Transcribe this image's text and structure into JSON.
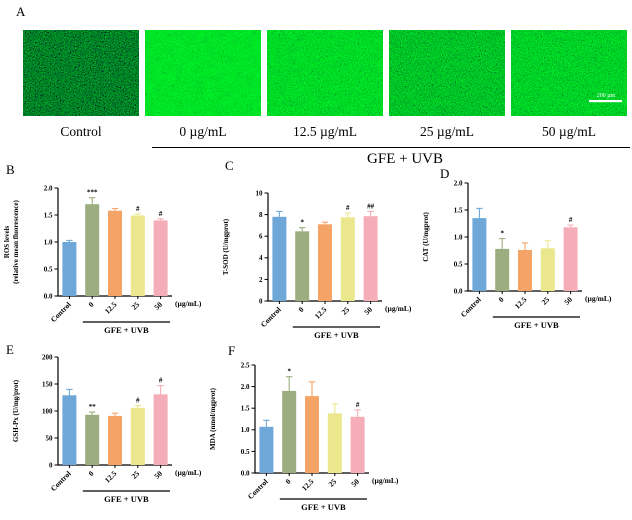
{
  "figure": {
    "panel_a": {
      "letter": "A",
      "images": [
        {
          "label": "Control"
        },
        {
          "label": "0 µg/mL"
        },
        {
          "label": "12.5 µg/mL"
        },
        {
          "label": "25 µg/mL"
        },
        {
          "label": "50 µg/mL",
          "scale_bar": "200 µm"
        }
      ],
      "group_label": "GFE + UVB"
    }
  },
  "colors": {
    "bar_palette": [
      "#6FA7D9",
      "#9CAE7F",
      "#F4A466",
      "#EBE78C",
      "#F5ADB7"
    ],
    "axis": "#000000",
    "image_background": "#03160a",
    "scale_bar": "#ffffff"
  },
  "chart_data": [
    {
      "panel": "B",
      "type": "bar",
      "ylabel_lines": [
        "ROS levels",
        "(relative mean fluorescence)"
      ],
      "categories": [
        "Control",
        "0",
        "12.5",
        "25",
        "50"
      ],
      "values": [
        1.0,
        1.7,
        1.58,
        1.49,
        1.4
      ],
      "errors": [
        0.03,
        0.12,
        0.04,
        0.03,
        0.03
      ],
      "sig": [
        "",
        "***",
        "",
        "#",
        "#"
      ],
      "yticks": [
        "0.0",
        "0.5",
        "1.0",
        "1.5",
        "2.0"
      ],
      "ymax": 2.0,
      "x_unit": "(µg/mL)",
      "group_label": "GFE + UVB"
    },
    {
      "panel": "C",
      "type": "bar",
      "ylabel_lines": [
        "T-SOD (U/mgprot)"
      ],
      "categories": [
        "Control",
        "0",
        "12.5",
        "25",
        "50"
      ],
      "values": [
        7.8,
        6.45,
        7.1,
        7.75,
        7.85
      ],
      "errors": [
        0.5,
        0.35,
        0.2,
        0.4,
        0.45
      ],
      "sig": [
        "",
        "*",
        "",
        "#",
        "##"
      ],
      "yticks": [
        "0",
        "2",
        "4",
        "6",
        "8",
        "10"
      ],
      "ymax": 10,
      "x_unit": "(µg/mL)",
      "group_label": "GFE + UVB"
    },
    {
      "panel": "D",
      "type": "bar",
      "ylabel_lines": [
        "CAT (U/mgprot)"
      ],
      "categories": [
        "Control",
        "0",
        "12.5",
        "25",
        "50"
      ],
      "values": [
        1.35,
        0.78,
        0.76,
        0.79,
        1.18
      ],
      "errors": [
        0.18,
        0.19,
        0.13,
        0.14,
        0.04
      ],
      "sig": [
        "",
        "*",
        "",
        "",
        "#"
      ],
      "yticks": [
        "0.0",
        "0.5",
        "1.0",
        "1.5",
        "2.0"
      ],
      "ymax": 2.0,
      "x_unit": "(µg/mL)",
      "group_label": "GFE + UVB"
    },
    {
      "panel": "E",
      "type": "bar",
      "ylabel_lines": [
        "GSH-Px (U/mg/prot)"
      ],
      "categories": [
        "Control",
        "0",
        "12.5",
        "25",
        "50"
      ],
      "values": [
        129,
        93,
        91,
        106,
        131
      ],
      "errors": [
        11,
        5,
        5,
        4,
        16
      ],
      "sig": [
        "",
        "**",
        "",
        "#",
        "#"
      ],
      "yticks": [
        "0",
        "50",
        "100",
        "150",
        "200"
      ],
      "ymax": 200,
      "x_unit": "(µg/mL)",
      "group_label": "GFE + UVB"
    },
    {
      "panel": "F",
      "type": "bar",
      "ylabel_lines": [
        "MDA (nmol/mgprot)"
      ],
      "categories": [
        "Control",
        "0",
        "12.5",
        "25",
        "50"
      ],
      "values": [
        1.07,
        1.9,
        1.78,
        1.38,
        1.3
      ],
      "errors": [
        0.15,
        0.33,
        0.33,
        0.22,
        0.16
      ],
      "sig": [
        "",
        "*",
        "",
        "",
        "#"
      ],
      "yticks": [
        "0.0",
        "0.5",
        "1.0",
        "1.5",
        "2.0",
        "2.5"
      ],
      "ymax": 2.5,
      "x_unit": "(µg/mL)",
      "group_label": "GFE + UVB"
    }
  ]
}
